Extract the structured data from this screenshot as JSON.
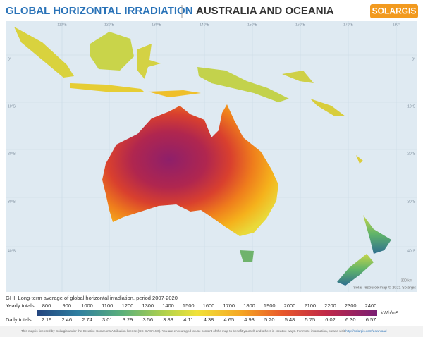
{
  "header": {
    "title": "GLOBAL HORIZONTAL IRRADIATION",
    "region": "AUSTRALIA AND OCEANIA",
    "logo": "SOLARGIS"
  },
  "map": {
    "longitudes": [
      "110°E",
      "120°E",
      "130°E",
      "140°E",
      "150°E",
      "160°E",
      "170°E",
      "180°"
    ],
    "latitudes": [
      "0°",
      "10°S",
      "20°S",
      "30°S",
      "40°S"
    ],
    "scale": "300 km",
    "credit": "Solar resource map © 2021 Solargis"
  },
  "legend": {
    "description": "GHI: Long-term average of global horizontal irradiation, period 2007-2020",
    "yearly_label": "Yearly totals:",
    "yearly": [
      "800",
      "900",
      "1000",
      "1100",
      "1200",
      "1300",
      "1400",
      "1500",
      "1600",
      "1700",
      "1800",
      "1900",
      "2000",
      "2100",
      "2200",
      "2300",
      "2400"
    ],
    "daily_label": "Daily totals:",
    "daily": [
      "2.19",
      "2.46",
      "2.74",
      "3.01",
      "3.29",
      "3.56",
      "3.83",
      "4.11",
      "4.38",
      "4.65",
      "4.93",
      "5.20",
      "5.48",
      "5.75",
      "6.02",
      "6.30",
      "6.57"
    ],
    "unit": "kWh/m²"
  },
  "footer": {
    "license": "This map is licensed by Solargis under the Creative Commons Attribution license (CC BY-SA 4.0). You are encouraged to use content of the map to benefit yourself and others in creative ways. For more information, please visit",
    "link": "http://solargis.com/download"
  }
}
